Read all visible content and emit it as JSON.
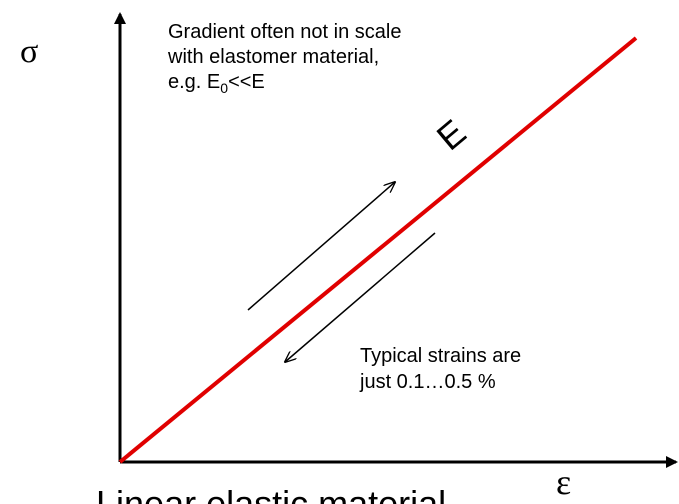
{
  "labels": {
    "sigma": "σ",
    "epsilon": "ε",
    "gradient_note": [
      "Gradient often not in scale",
      "with elastomer material,"
    ],
    "gradient_example": {
      "before": "e.g. E",
      "subscript": "0",
      "after": "<<E"
    },
    "modulus": "E",
    "strain_note": [
      "Typical strains are",
      "just 0.1…0.5 %"
    ],
    "caption": "Linear elastic material"
  }
}
